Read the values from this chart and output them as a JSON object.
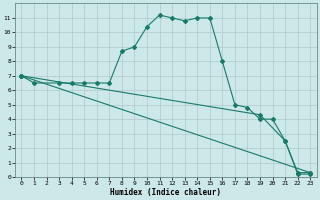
{
  "xlabel": "Humidex (Indice chaleur)",
  "bg_color": "#cce8e8",
  "grid_color": "#b0c8c8",
  "line_color": "#1a7a6a",
  "xlim": [
    -0.5,
    23.5
  ],
  "ylim": [
    0,
    12
  ],
  "xticks": [
    0,
    1,
    2,
    3,
    4,
    5,
    6,
    7,
    8,
    9,
    10,
    11,
    12,
    13,
    14,
    15,
    16,
    17,
    18,
    19,
    20,
    21,
    22,
    23
  ],
  "yticks": [
    0,
    1,
    2,
    3,
    4,
    5,
    6,
    7,
    8,
    9,
    10,
    11
  ],
  "series1_x": [
    0,
    1,
    3,
    4,
    5,
    6,
    7,
    8,
    9,
    10,
    11,
    12,
    13,
    14,
    15,
    16,
    17,
    18,
    19,
    20,
    21,
    22,
    23
  ],
  "series1_y": [
    7,
    6.5,
    6.5,
    6.5,
    6.5,
    6.5,
    6.5,
    8.7,
    9.0,
    10.4,
    11.2,
    11.0,
    10.8,
    11.0,
    11.0,
    8.0,
    5.0,
    4.8,
    4.0,
    4.0,
    2.5,
    0.2,
    0.2
  ],
  "series2_x": [
    0,
    23
  ],
  "series2_y": [
    7,
    0.3
  ],
  "series3_x": [
    0,
    19,
    21,
    22,
    23
  ],
  "series3_y": [
    7,
    4.3,
    2.5,
    0.3,
    0.3
  ]
}
